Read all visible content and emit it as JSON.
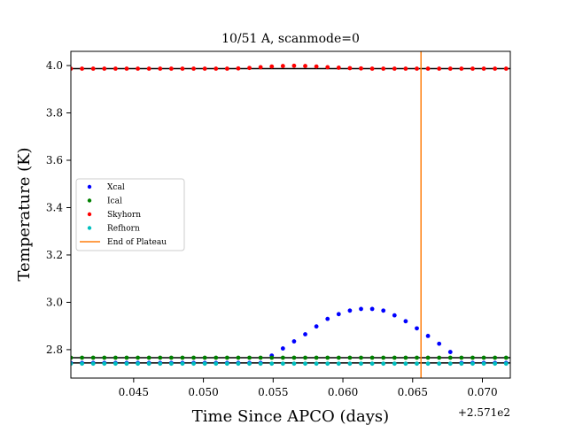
{
  "chart_data": {
    "type": "scatter",
    "title": "10/51 A, scanmode=0",
    "xlabel": "Time Since APCO (days)",
    "ylabel": "Temperature (K)",
    "x_offset_label": "+2.571e2",
    "xlim": [
      257.1405,
      257.172
    ],
    "ylim": [
      2.68,
      4.06
    ],
    "x_tick_values": [
      257.145,
      257.15,
      257.155,
      257.16,
      257.165,
      257.17
    ],
    "x_tick_labels": [
      "0.045",
      "0.050",
      "0.055",
      "0.060",
      "0.065",
      "0.070"
    ],
    "y_tick_values": [
      2.8,
      3.0,
      3.2,
      3.4,
      3.6,
      3.8,
      4.0
    ],
    "y_tick_labels": [
      "2.8",
      "3.0",
      "3.2",
      "3.4",
      "3.6",
      "3.8",
      "4.0"
    ],
    "grid": false,
    "legend_position": "center-left",
    "series": [
      {
        "name": "Xcal",
        "color": "#0000ff",
        "x": [
          257.1405,
          257.1413,
          257.1421,
          257.1429,
          257.1437,
          257.1445,
          257.1453,
          257.1461,
          257.1469,
          257.1477,
          257.1485,
          257.1493,
          257.1501,
          257.1509,
          257.1517,
          257.1525,
          257.1533,
          257.1541,
          257.1549,
          257.1557,
          257.1565,
          257.1573,
          257.1581,
          257.1589,
          257.1597,
          257.1605,
          257.1613,
          257.1621,
          257.1629,
          257.1637,
          257.1645,
          257.1653,
          257.1661,
          257.1669,
          257.1677,
          257.1685,
          257.1693,
          257.1701,
          257.1709,
          257.1717
        ],
        "y": [
          2.744,
          2.744,
          2.744,
          2.744,
          2.744,
          2.744,
          2.744,
          2.744,
          2.744,
          2.744,
          2.744,
          2.744,
          2.744,
          2.744,
          2.744,
          2.744,
          2.744,
          2.744,
          2.775,
          2.805,
          2.835,
          2.865,
          2.898,
          2.93,
          2.95,
          2.965,
          2.972,
          2.972,
          2.965,
          2.945,
          2.92,
          2.89,
          2.858,
          2.825,
          2.79,
          2.744,
          2.744,
          2.744,
          2.744,
          2.744
        ]
      },
      {
        "name": "Ical",
        "color": "#008000",
        "x": [
          257.1405,
          257.1413,
          257.1421,
          257.1429,
          257.1437,
          257.1445,
          257.1453,
          257.1461,
          257.1469,
          257.1477,
          257.1485,
          257.1493,
          257.1501,
          257.1509,
          257.1517,
          257.1525,
          257.1533,
          257.1541,
          257.1549,
          257.1557,
          257.1565,
          257.1573,
          257.1581,
          257.1589,
          257.1597,
          257.1605,
          257.1613,
          257.1621,
          257.1629,
          257.1637,
          257.1645,
          257.1653,
          257.1661,
          257.1669,
          257.1677,
          257.1685,
          257.1693,
          257.1701,
          257.1709,
          257.1717
        ],
        "y": [
          2.766,
          2.766,
          2.766,
          2.766,
          2.766,
          2.766,
          2.766,
          2.766,
          2.766,
          2.766,
          2.766,
          2.766,
          2.766,
          2.766,
          2.766,
          2.766,
          2.766,
          2.766,
          2.766,
          2.766,
          2.766,
          2.766,
          2.766,
          2.766,
          2.766,
          2.766,
          2.766,
          2.766,
          2.766,
          2.766,
          2.766,
          2.766,
          2.766,
          2.766,
          2.766,
          2.766,
          2.766,
          2.766,
          2.766,
          2.766
        ]
      },
      {
        "name": "Skyhorn",
        "color": "#ff0000",
        "x": [
          257.1405,
          257.1413,
          257.1421,
          257.1429,
          257.1437,
          257.1445,
          257.1453,
          257.1461,
          257.1469,
          257.1477,
          257.1485,
          257.1493,
          257.1501,
          257.1509,
          257.1517,
          257.1525,
          257.1533,
          257.1541,
          257.1549,
          257.1557,
          257.1565,
          257.1573,
          257.1581,
          257.1589,
          257.1597,
          257.1605,
          257.1613,
          257.1621,
          257.1629,
          257.1637,
          257.1645,
          257.1653,
          257.1661,
          257.1669,
          257.1677,
          257.1685,
          257.1693,
          257.1701,
          257.1709,
          257.1717
        ],
        "y": [
          3.987,
          3.987,
          3.987,
          3.987,
          3.987,
          3.987,
          3.987,
          3.987,
          3.987,
          3.987,
          3.987,
          3.987,
          3.987,
          3.987,
          3.987,
          3.988,
          3.99,
          3.993,
          3.996,
          3.998,
          3.999,
          3.998,
          3.996,
          3.993,
          3.991,
          3.989,
          3.988,
          3.987,
          3.987,
          3.987,
          3.987,
          3.987,
          3.987,
          3.987,
          3.987,
          3.987,
          3.987,
          3.987,
          3.987,
          3.987
        ]
      },
      {
        "name": "Refhorn",
        "color": "#00bfbf",
        "x": [
          257.1405,
          257.1413,
          257.1421,
          257.1429,
          257.1437,
          257.1445,
          257.1453,
          257.1461,
          257.1469,
          257.1477,
          257.1485,
          257.1493,
          257.1501,
          257.1509,
          257.1517,
          257.1525,
          257.1533,
          257.1541,
          257.1549,
          257.1557,
          257.1565,
          257.1573,
          257.1581,
          257.1589,
          257.1597,
          257.1605,
          257.1613,
          257.1621,
          257.1629,
          257.1637,
          257.1645,
          257.1653,
          257.1661,
          257.1669,
          257.1677,
          257.1685,
          257.1693,
          257.1701,
          257.1709,
          257.1717
        ],
        "y": [
          2.741,
          2.741,
          2.741,
          2.741,
          2.741,
          2.741,
          2.741,
          2.741,
          2.741,
          2.741,
          2.741,
          2.741,
          2.741,
          2.741,
          2.741,
          2.741,
          2.741,
          2.741,
          2.741,
          2.741,
          2.741,
          2.741,
          2.741,
          2.741,
          2.741,
          2.741,
          2.741,
          2.741,
          2.741,
          2.741,
          2.741,
          2.741,
          2.741,
          2.741,
          2.741,
          2.741,
          2.741,
          2.741,
          2.741,
          2.741
        ]
      }
    ],
    "reference_lines": [
      {
        "y": 3.987,
        "color": "#000000"
      },
      {
        "y": 2.766,
        "color": "#000000"
      },
      {
        "y": 2.744,
        "color": "#000000"
      }
    ],
    "vertical_line": {
      "name": "End of Plateau",
      "x": 257.1656,
      "color": "#ff7f0e"
    }
  }
}
